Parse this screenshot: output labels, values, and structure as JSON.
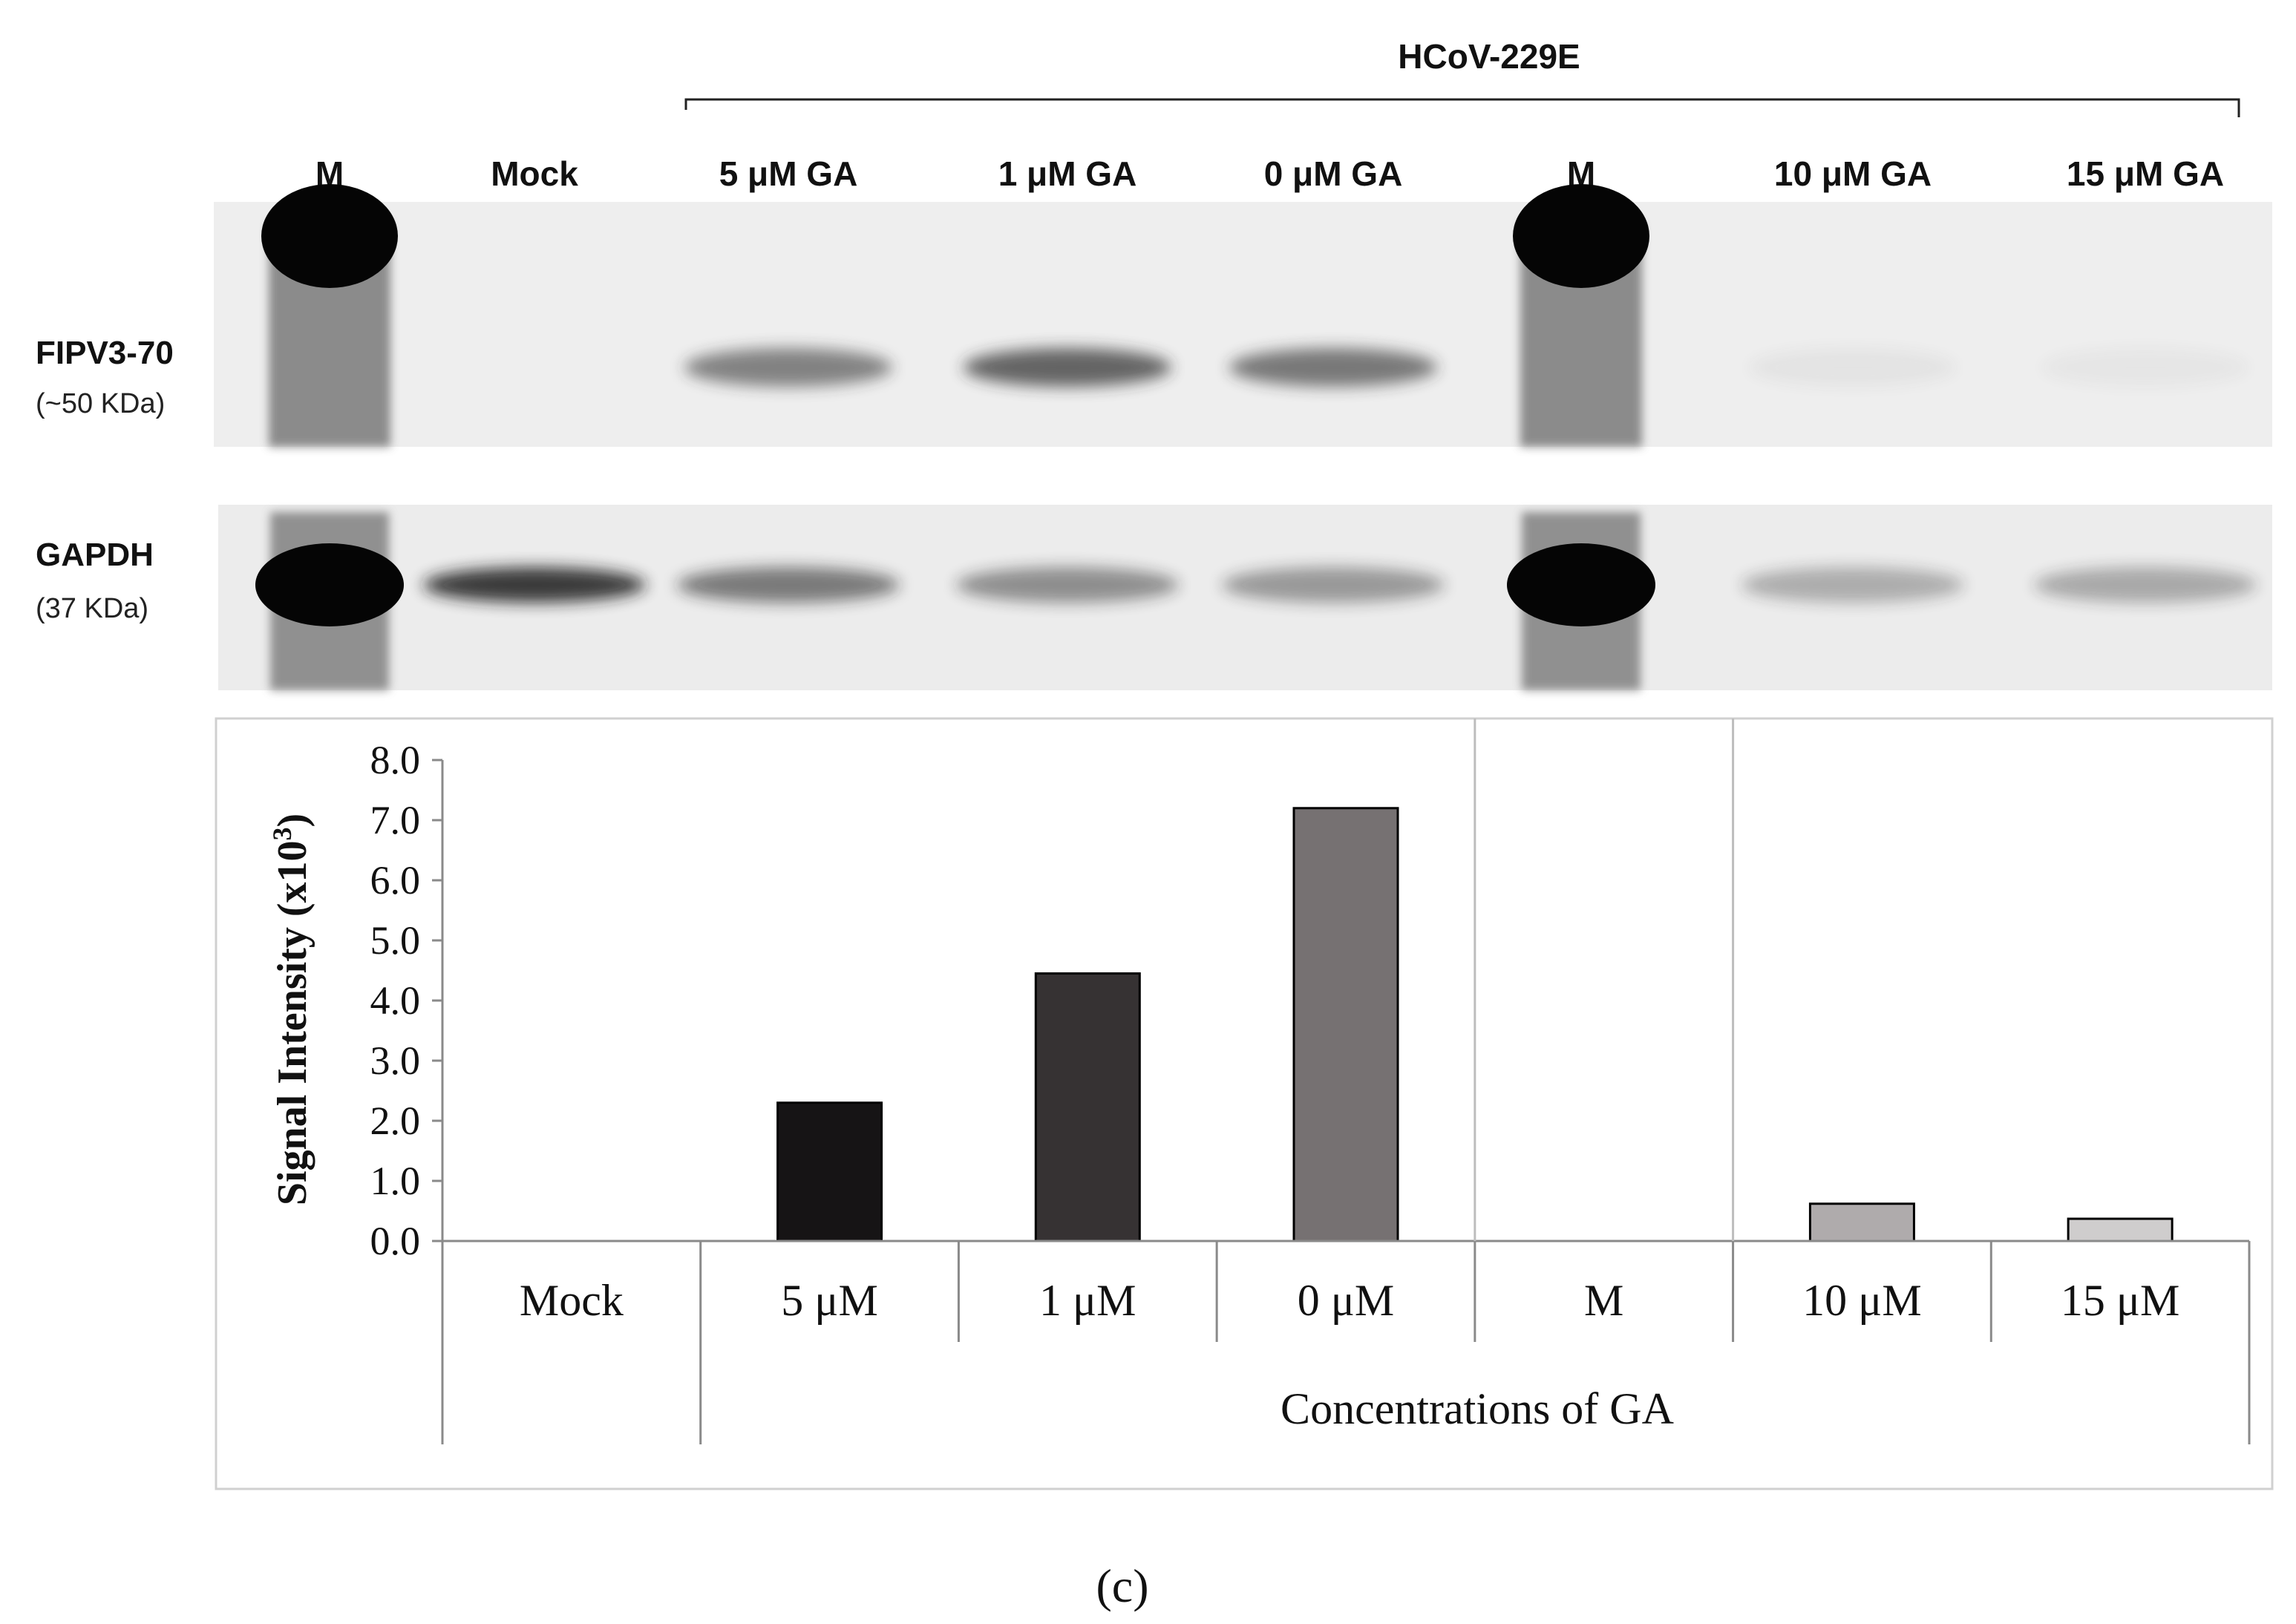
{
  "figure": {
    "group_label": "HCoV-229E",
    "panel_label": "(c)",
    "lanes": [
      {
        "label": "M",
        "marker": true,
        "fipv": 0,
        "gapdh": 1.0
      },
      {
        "label": "Mock",
        "marker": false,
        "fipv": 0,
        "gapdh": 0.85
      },
      {
        "label": "5 μM GA",
        "marker": false,
        "fipv": 0.55,
        "gapdh": 0.55
      },
      {
        "label": "1 μM GA",
        "marker": false,
        "fipv": 0.7,
        "gapdh": 0.45
      },
      {
        "label": "0 μM GA",
        "marker": false,
        "fipv": 0.6,
        "gapdh": 0.4
      },
      {
        "label": "M",
        "marker": true,
        "fipv": 0,
        "gapdh": 1.0
      },
      {
        "label": "10 μM GA",
        "marker": false,
        "fipv": 0.05,
        "gapdh": 0.3
      },
      {
        "label": "15  μM GA",
        "marker": false,
        "fipv": 0.04,
        "gapdh": 0.32
      }
    ],
    "blots": [
      {
        "name": "FIPV3-70",
        "size": "(~50 KDa)"
      },
      {
        "name": "GAPDH",
        "size": "(37 KDa)"
      }
    ]
  },
  "chart_data": {
    "type": "bar",
    "categories": [
      "Mock",
      "5 μM",
      "1 μM",
      "0 μM",
      "M",
      "10 μM",
      "15 μM"
    ],
    "values": [
      0.0,
      2.3,
      4.45,
      7.2,
      0.0,
      0.62,
      0.37
    ],
    "bar_colors": [
      "#ffffff",
      "#161415",
      "#363233",
      "#767172",
      "#ffffff",
      "#afabac",
      "#cfcdcd"
    ],
    "ylabel_main": "Signal Intensity (x10",
    "ylabel_sup": "3",
    "ylabel_end": ")",
    "xlabel": "Concentrations of GA",
    "yticks": [
      "0.0",
      "1.0",
      "2.0",
      "3.0",
      "4.0",
      "5.0",
      "6.0",
      "7.0",
      "8.0"
    ],
    "ylim": [
      0,
      8
    ],
    "grid": false
  }
}
